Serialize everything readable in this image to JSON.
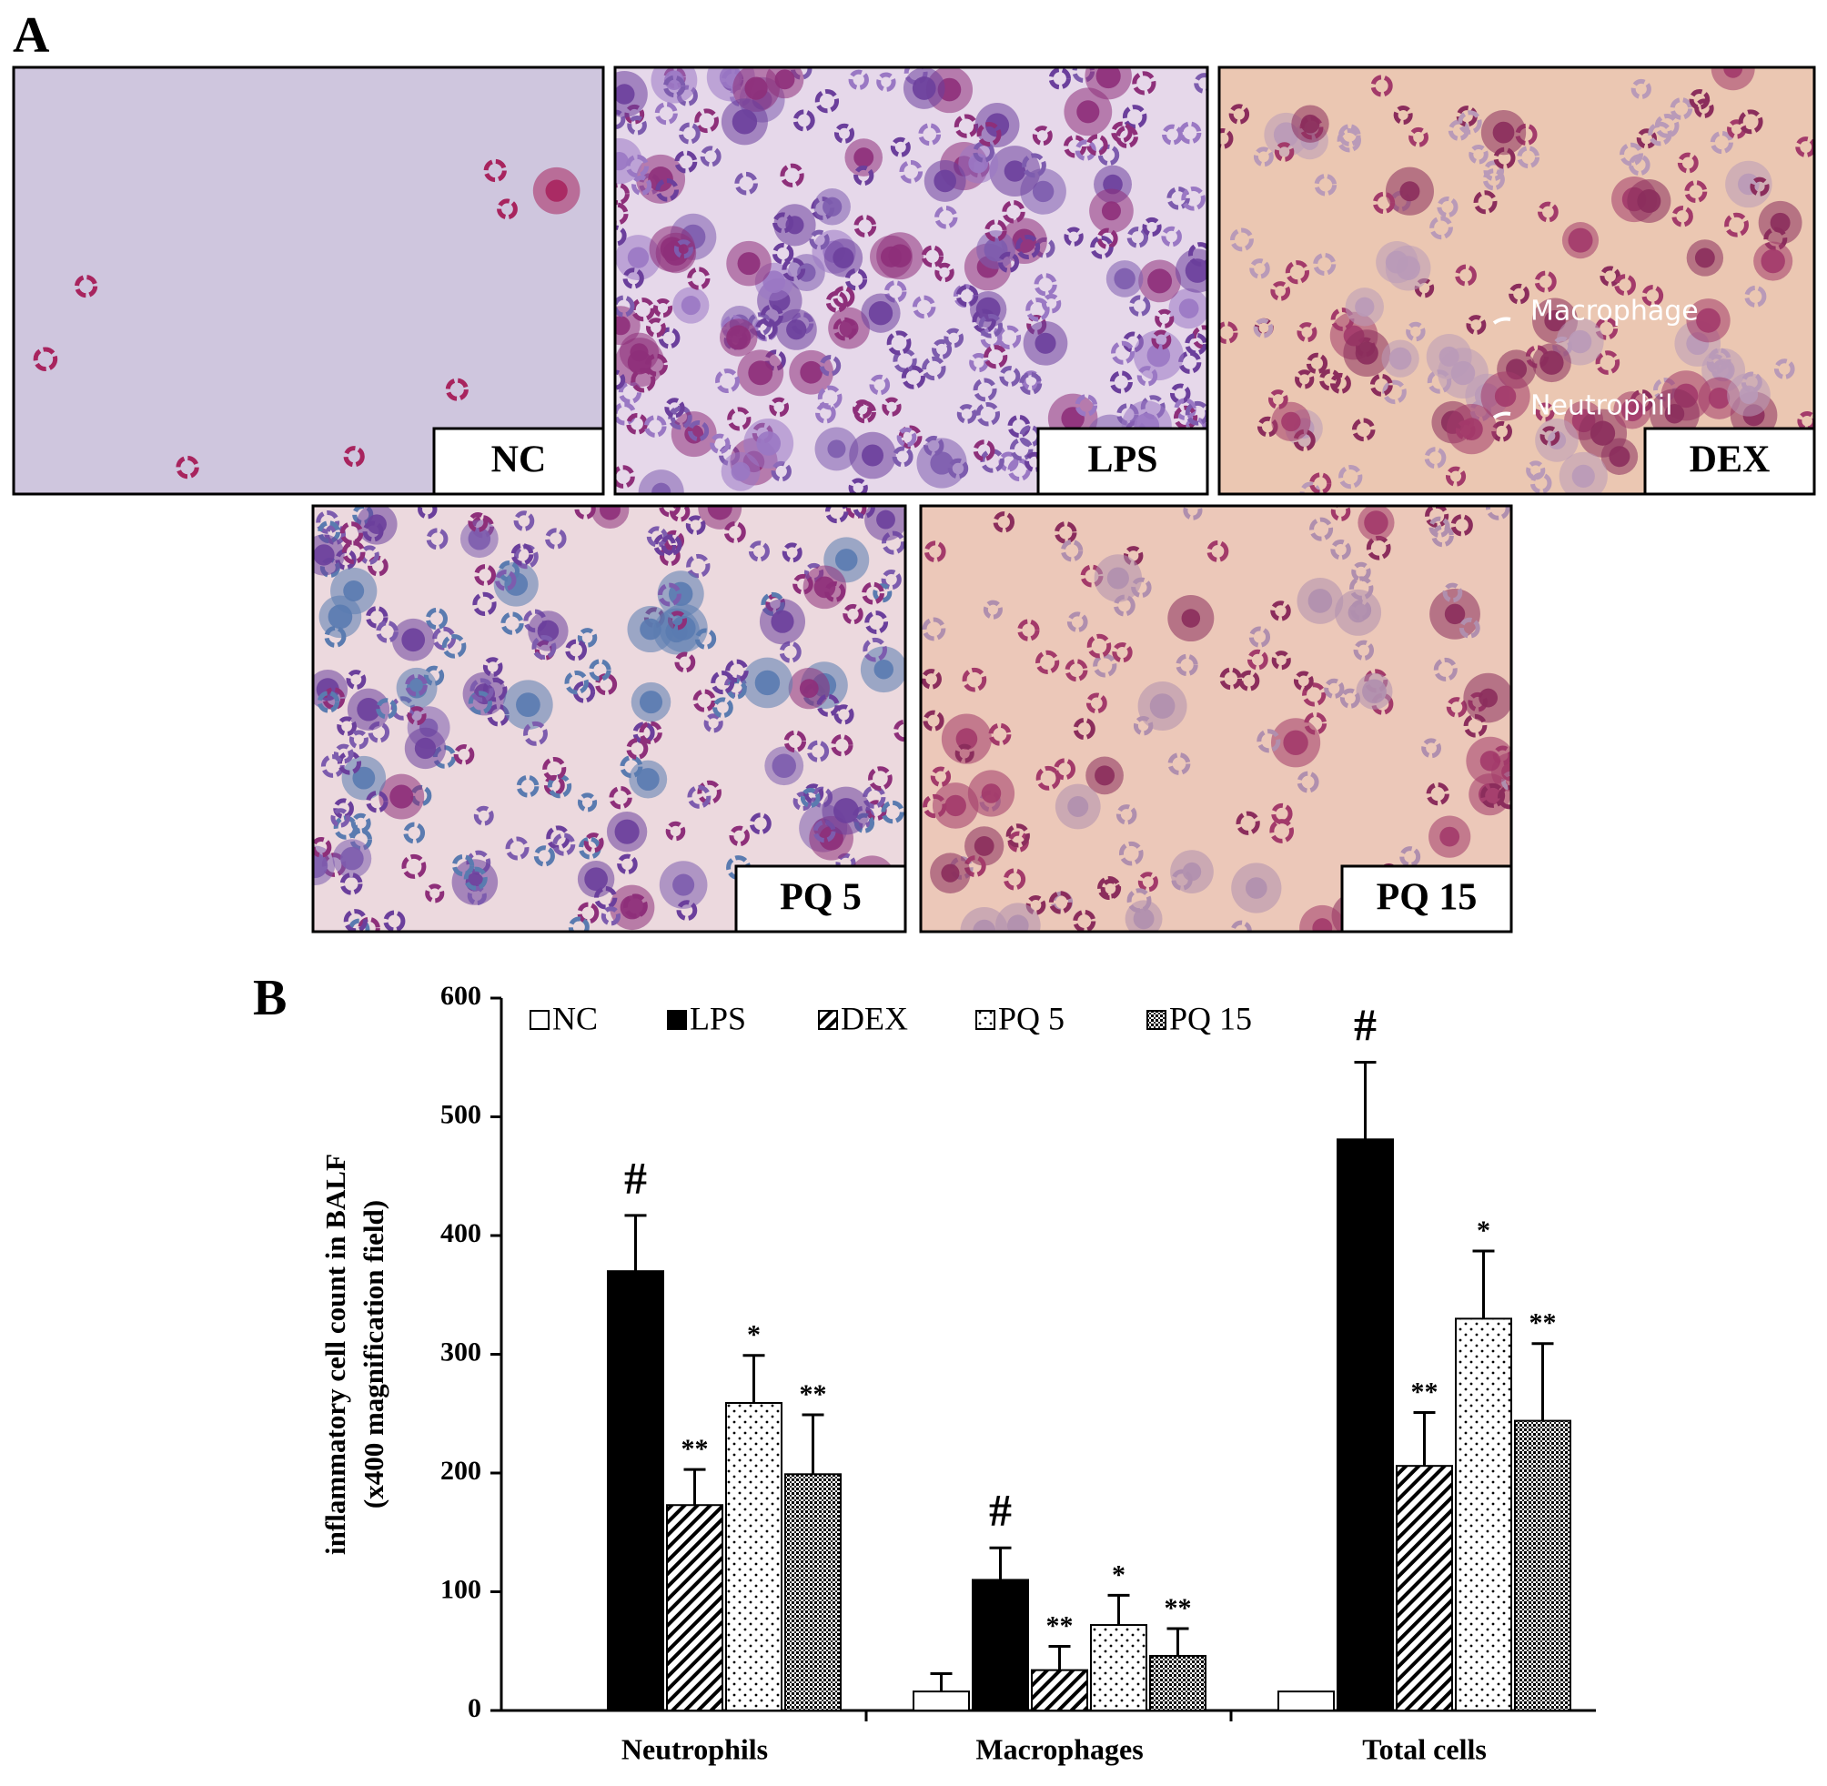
{
  "figure": {
    "panel_a": {
      "letter": "A",
      "panels": [
        {
          "label": "NC"
        },
        {
          "label": "LPS"
        },
        {
          "label": "DEX",
          "annotations": [
            "Macrophage",
            "Neutrophil"
          ]
        },
        {
          "label": "PQ 5"
        },
        {
          "label": "PQ 15"
        }
      ]
    },
    "panel_b": {
      "letter": "B"
    }
  },
  "chart_data": {
    "type": "bar",
    "y_label": [
      "inflammatory  cell  count  in BALF",
      "(x400 magnification  field)"
    ],
    "categories": [
      "Neutrophils",
      "Macrophages",
      "Total cells"
    ],
    "ylim": [
      0,
      600
    ],
    "yticks": [
      0,
      100,
      200,
      300,
      400,
      500,
      600
    ],
    "legend": "top",
    "series": [
      {
        "name": "NC",
        "color": "#ffffff",
        "pattern": "solid",
        "values": [
          0,
          16,
          16
        ],
        "errors": [
          0,
          15,
          0
        ],
        "labels": [
          null,
          null,
          null
        ]
      },
      {
        "name": "LPS",
        "color": "#000000",
        "pattern": "solid",
        "values": [
          370,
          110,
          481
        ],
        "errors": [
          47,
          27,
          65
        ],
        "labels": [
          "#",
          "#",
          "#"
        ]
      },
      {
        "name": "DEX",
        "color": "#000000",
        "pattern": "diagonal",
        "values": [
          173,
          34,
          206
        ],
        "errors": [
          30,
          20,
          45
        ],
        "labels": [
          "**",
          "**",
          "**"
        ]
      },
      {
        "name": "PQ 5",
        "color": "#000000",
        "pattern": "dots",
        "values": [
          259,
          72,
          330
        ],
        "errors": [
          40,
          25,
          57
        ],
        "labels": [
          "*",
          "*",
          "*"
        ]
      },
      {
        "name": "PQ 15",
        "color": "#000000",
        "pattern": "crosshatch",
        "values": [
          199,
          46,
          244
        ],
        "errors": [
          50,
          23,
          65
        ],
        "labels": [
          "**",
          "**",
          "**"
        ]
      }
    ]
  }
}
